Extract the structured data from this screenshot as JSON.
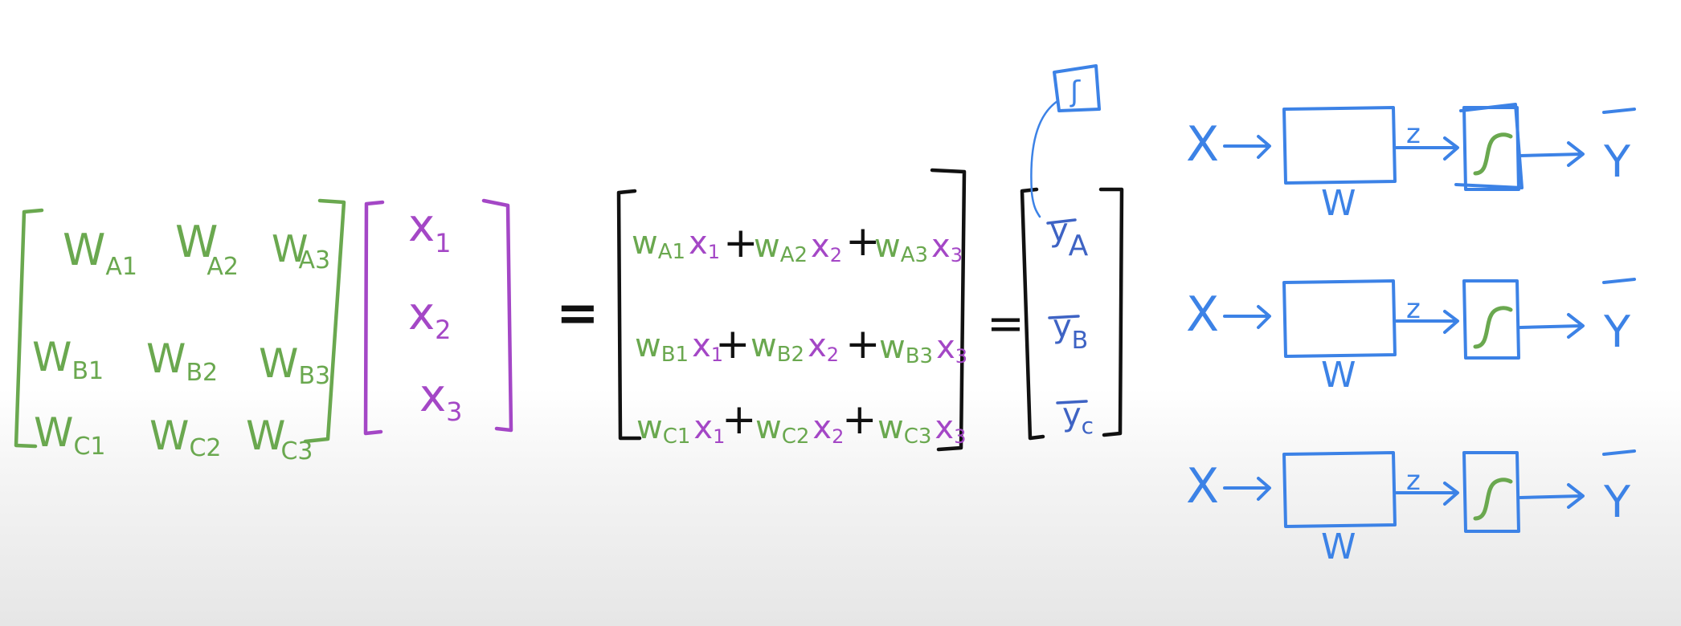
{
  "weights": {
    "row_a": [
      "W",
      "W",
      "W"
    ],
    "row_a_sub": [
      "A1",
      "A2",
      "A3"
    ],
    "row_b": [
      "W",
      "W",
      "W"
    ],
    "row_b_sub": [
      "B1",
      "B2",
      "B3"
    ],
    "row_c": [
      "W",
      "W",
      "W"
    ],
    "row_c_sub": [
      "C1",
      "C2",
      "C3"
    ]
  },
  "inputs": {
    "x": [
      "x",
      "x",
      "x"
    ],
    "sub": [
      "1",
      "2",
      "3"
    ]
  },
  "equals": "=",
  "product": {
    "plus": "+",
    "rows": [
      {
        "terms": [
          {
            "w": "w",
            "ws": "A1",
            "x": "x",
            "xs": "1"
          },
          {
            "w": "w",
            "ws": "A2",
            "x": "x",
            "xs": "2"
          },
          {
            "w": "w",
            "ws": "A3",
            "x": "x",
            "xs": "3"
          }
        ]
      },
      {
        "terms": [
          {
            "w": "w",
            "ws": "B1",
            "x": "x",
            "xs": "1"
          },
          {
            "w": "w",
            "ws": "B2",
            "x": "x",
            "xs": "2"
          },
          {
            "w": "w",
            "ws": "B3",
            "x": "x",
            "xs": "3"
          }
        ]
      },
      {
        "terms": [
          {
            "w": "w",
            "ws": "C1",
            "x": "x",
            "xs": "1"
          },
          {
            "w": "w",
            "ws": "C2",
            "x": "x",
            "xs": "2"
          },
          {
            "w": "w",
            "ws": "C3",
            "x": "x",
            "xs": "3"
          }
        ]
      }
    ]
  },
  "outputs": {
    "y": [
      "y",
      "y",
      "y"
    ],
    "sub": [
      "A",
      "B",
      "c"
    ]
  },
  "sigmoid_glyph": "ʃ",
  "networks": {
    "input": "X",
    "weight": "W",
    "z": "z",
    "output": "Y"
  },
  "colors": {
    "weights": "#6aa84f",
    "inputs": "#a447c6",
    "operators": "#111111",
    "outputs": "#3e63c4",
    "network": "#3c82e6"
  }
}
